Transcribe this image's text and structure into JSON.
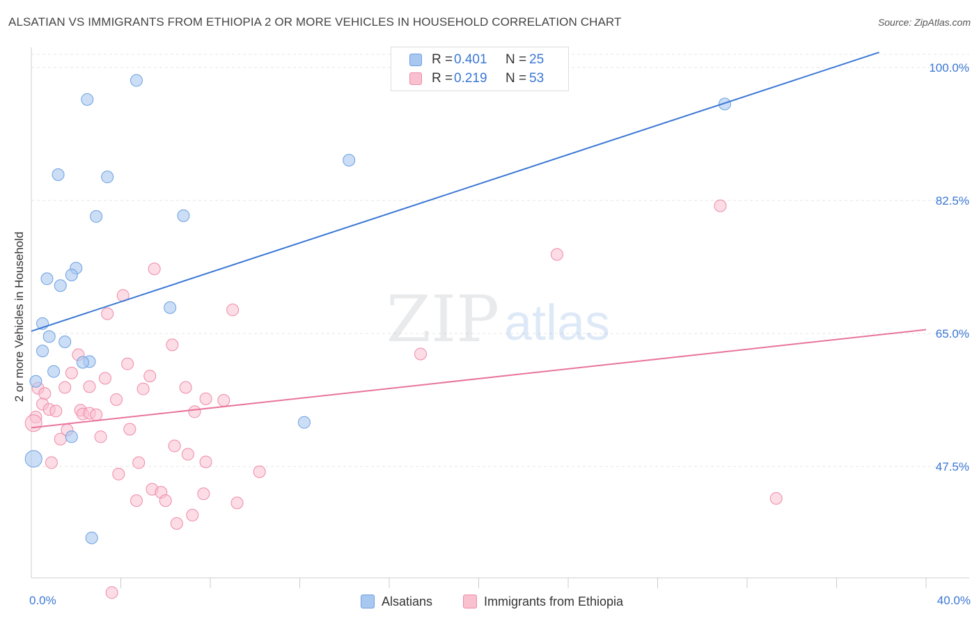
{
  "title": "ALSATIAN VS IMMIGRANTS FROM ETHIOPIA 2 OR MORE VEHICLES IN HOUSEHOLD CORRELATION CHART",
  "source": "Source: ZipAtlas.com",
  "watermark": {
    "zip": "ZIP",
    "atlas": "atlas"
  },
  "legend": {
    "rows": [
      {
        "r_label": "R =",
        "r_value": "0.401",
        "n_label": "N =",
        "n_value": "25",
        "color": "#a8c8f0",
        "border": "#6b9fe0"
      },
      {
        "r_label": "R =",
        "r_value": "0.219",
        "n_label": "N =",
        "n_value": "53",
        "color": "#f9c0d0",
        "border": "#ee8aa8"
      }
    ]
  },
  "bottom_legend": {
    "series1": "Alsatians",
    "series2": "Immigrants from Ethiopia"
  },
  "colors": {
    "blue_fill": "#a8c8f0",
    "blue_stroke": "#6b9fe0",
    "blue_line": "#3a77d4",
    "pink_fill": "#f9c0d0",
    "pink_stroke": "#ee8aa8",
    "pink_line": "#e8739a",
    "axis_label": "#3a77d4",
    "grid": "#e5e5e5"
  },
  "chart_data": {
    "type": "scatter",
    "title": "ALSATIAN VS IMMIGRANTS FROM ETHIOPIA 2 OR MORE VEHICLES IN HOUSEHOLD CORRELATION CHART",
    "xlabel": "",
    "ylabel": "2 or more Vehicles in Household",
    "xlim": [
      0,
      40
    ],
    "ylim": [
      30,
      102
    ],
    "x_tick_labels": {
      "left": "0.0%",
      "right": "40.0%"
    },
    "y_ticks": [
      {
        "value": 100,
        "label": "100.0%"
      },
      {
        "value": 82.5,
        "label": "82.5%"
      },
      {
        "value": 65,
        "label": "65.0%"
      },
      {
        "value": 47.5,
        "label": "47.5%"
      }
    ],
    "grid": true,
    "series": [
      {
        "name": "Alsatians",
        "r": 0.401,
        "n": 25,
        "trend": {
          "x0": 0,
          "y0": 65.3,
          "x1": 37.9,
          "y1": 102
        },
        "points": [
          {
            "x": 4.7,
            "y": 98.3
          },
          {
            "x": 2.5,
            "y": 95.8
          },
          {
            "x": 1.2,
            "y": 85.9
          },
          {
            "x": 3.4,
            "y": 85.6
          },
          {
            "x": 14.2,
            "y": 87.8
          },
          {
            "x": 2.9,
            "y": 80.4
          },
          {
            "x": 6.8,
            "y": 80.5
          },
          {
            "x": 31.0,
            "y": 95.2
          },
          {
            "x": 2.0,
            "y": 73.6
          },
          {
            "x": 1.8,
            "y": 72.7
          },
          {
            "x": 0.7,
            "y": 72.2
          },
          {
            "x": 1.3,
            "y": 71.3
          },
          {
            "x": 6.2,
            "y": 68.4
          },
          {
            "x": 0.5,
            "y": 66.3
          },
          {
            "x": 0.8,
            "y": 64.6
          },
          {
            "x": 1.5,
            "y": 63.9
          },
          {
            "x": 0.5,
            "y": 62.7
          },
          {
            "x": 2.6,
            "y": 61.3
          },
          {
            "x": 2.3,
            "y": 61.2
          },
          {
            "x": 0.2,
            "y": 58.7
          },
          {
            "x": 12.2,
            "y": 53.3
          },
          {
            "x": 1.8,
            "y": 51.4
          },
          {
            "x": 0.1,
            "y": 48.5
          },
          {
            "x": 2.7,
            "y": 38.1
          },
          {
            "x": 1.0,
            "y": 60.0
          }
        ]
      },
      {
        "name": "Immigrants from Ethiopia",
        "r": 0.219,
        "n": 53,
        "trend": {
          "x0": 0,
          "y0": 52.6,
          "x1": 40,
          "y1": 65.5
        },
        "points": [
          {
            "x": 30.8,
            "y": 81.8
          },
          {
            "x": 23.5,
            "y": 75.4
          },
          {
            "x": 5.5,
            "y": 73.5
          },
          {
            "x": 4.1,
            "y": 70.0
          },
          {
            "x": 9.0,
            "y": 68.1
          },
          {
            "x": 3.4,
            "y": 67.6
          },
          {
            "x": 6.3,
            "y": 63.5
          },
          {
            "x": 17.4,
            "y": 62.3
          },
          {
            "x": 2.1,
            "y": 62.2
          },
          {
            "x": 4.3,
            "y": 61.0
          },
          {
            "x": 1.8,
            "y": 59.8
          },
          {
            "x": 5.3,
            "y": 59.4
          },
          {
            "x": 3.3,
            "y": 59.1
          },
          {
            "x": 1.5,
            "y": 57.9
          },
          {
            "x": 2.6,
            "y": 58.0
          },
          {
            "x": 5.0,
            "y": 57.7
          },
          {
            "x": 6.9,
            "y": 57.9
          },
          {
            "x": 0.3,
            "y": 57.8
          },
          {
            "x": 0.6,
            "y": 57.1
          },
          {
            "x": 7.8,
            "y": 56.4
          },
          {
            "x": 3.8,
            "y": 56.3
          },
          {
            "x": 8.6,
            "y": 56.2
          },
          {
            "x": 0.5,
            "y": 55.7
          },
          {
            "x": 0.8,
            "y": 55.0
          },
          {
            "x": 1.1,
            "y": 54.8
          },
          {
            "x": 2.2,
            "y": 54.9
          },
          {
            "x": 2.3,
            "y": 54.4
          },
          {
            "x": 2.6,
            "y": 54.5
          },
          {
            "x": 2.9,
            "y": 54.3
          },
          {
            "x": 7.3,
            "y": 54.7
          },
          {
            "x": 0.2,
            "y": 54.0
          },
          {
            "x": 4.4,
            "y": 52.4
          },
          {
            "x": 1.6,
            "y": 52.3
          },
          {
            "x": 1.3,
            "y": 51.1
          },
          {
            "x": 3.1,
            "y": 51.4
          },
          {
            "x": 6.4,
            "y": 50.2
          },
          {
            "x": 7.0,
            "y": 49.1
          },
          {
            "x": 0.9,
            "y": 48.0
          },
          {
            "x": 4.8,
            "y": 48.0
          },
          {
            "x": 7.8,
            "y": 48.1
          },
          {
            "x": 10.2,
            "y": 46.8
          },
          {
            "x": 3.9,
            "y": 46.5
          },
          {
            "x": 5.4,
            "y": 44.5
          },
          {
            "x": 5.8,
            "y": 44.1
          },
          {
            "x": 7.7,
            "y": 43.9
          },
          {
            "x": 4.7,
            "y": 43.0
          },
          {
            "x": 6.0,
            "y": 43.0
          },
          {
            "x": 9.2,
            "y": 42.7
          },
          {
            "x": 33.3,
            "y": 43.3
          },
          {
            "x": 7.2,
            "y": 41.1
          },
          {
            "x": 6.5,
            "y": 40.0
          },
          {
            "x": 3.6,
            "y": 30.9
          },
          {
            "x": 0.1,
            "y": 53.2
          }
        ]
      }
    ]
  }
}
